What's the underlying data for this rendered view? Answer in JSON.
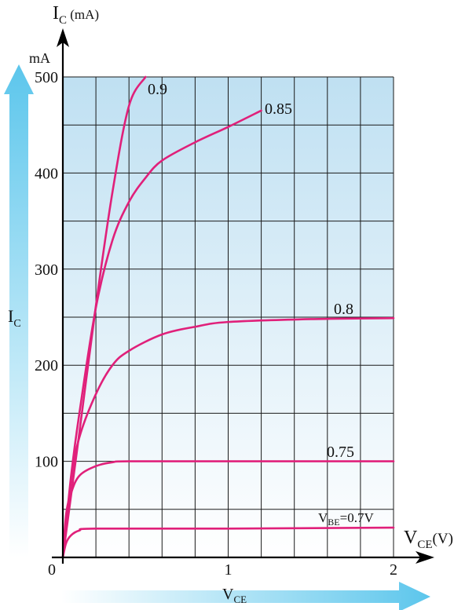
{
  "chart_data": {
    "type": "line",
    "title": "",
    "y_axis": {
      "label_main": "I",
      "label_sub": "C",
      "label_unit": " (mA)",
      "unit_label": "mA",
      "ylim": [
        0,
        500
      ],
      "ticks": [
        "0",
        "100",
        "200",
        "300",
        "400",
        "500"
      ]
    },
    "x_axis": {
      "label_main": "V",
      "label_sub": "CE",
      "label_unit": "(V)",
      "xlim": [
        0,
        2
      ],
      "ticks": [
        "1",
        "2"
      ]
    },
    "origin_label": "0",
    "side_arrow": {
      "main": "I",
      "sub": "C"
    },
    "bottom_arrow": {
      "main": "V",
      "sub": "CE"
    },
    "grid": true,
    "series": [
      {
        "name": "0.9",
        "x": [
          0,
          0.1,
          0.2,
          0.3,
          0.4,
          0.5
        ],
        "y": [
          0,
          130,
          262,
          380,
          470,
          500
        ]
      },
      {
        "name": "0.85",
        "x": [
          0,
          0.05,
          0.1,
          0.2,
          0.3,
          0.4,
          0.5,
          0.6,
          0.8,
          1.0,
          1.2
        ],
        "y": [
          0,
          85,
          150,
          260,
          330,
          370,
          395,
          413,
          432,
          448,
          465
        ]
      },
      {
        "name": "0.8",
        "x": [
          0,
          0.05,
          0.1,
          0.2,
          0.3,
          0.4,
          0.6,
          0.8,
          1.0,
          1.5,
          2.0
        ],
        "y": [
          0,
          80,
          125,
          170,
          200,
          215,
          232,
          240,
          245,
          248,
          249
        ]
      },
      {
        "name": "0.75",
        "x": [
          0,
          0.02,
          0.05,
          0.1,
          0.2,
          0.3,
          0.4,
          1.0,
          2.0
        ],
        "y": [
          0,
          45,
          67,
          85,
          95,
          99,
          100,
          100,
          100
        ]
      },
      {
        "name_main": "V",
        "name_sub": "BE",
        "name_suffix": "=0.7V",
        "x": [
          0,
          0.02,
          0.05,
          0.1,
          0.2,
          1.0,
          2.0
        ],
        "y": [
          0,
          15,
          23,
          28,
          30,
          30,
          31
        ]
      }
    ],
    "colors": {
      "curve": "#e0207a",
      "grid": "#1a1a1a",
      "plot_top": "#bfe0f2",
      "plot_bottom": "#ffffff",
      "arrow": "#5cc6ec"
    }
  }
}
